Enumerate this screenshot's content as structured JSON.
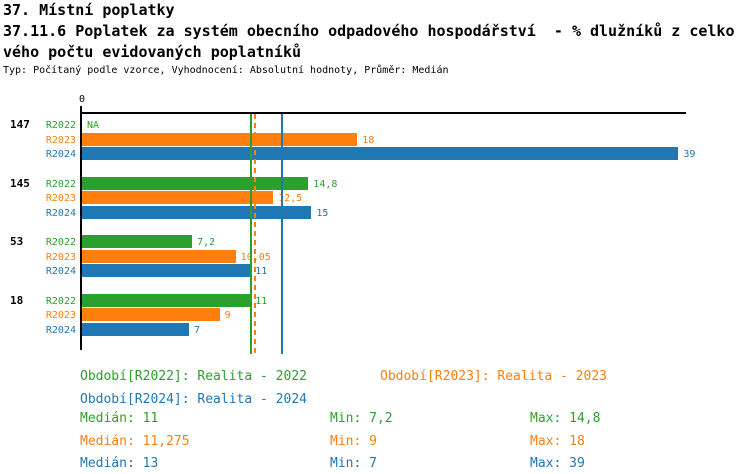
{
  "header": {
    "section_title": "37. Místní poplatky",
    "subtitle_line1": "37.11.6 Poplatek za systém obecního odpadového hospodářství  - % dlužníků z celko",
    "subtitle_line2": "vého počtu evidovaných poplatníků",
    "meta": "Typ: Počítaný podle vzorce, Vyhodnocení: Absolutní hodnoty, Průměr: Medián"
  },
  "colors": {
    "green": "#2ca02c",
    "orange": "#ff7f0e",
    "blue": "#1f77b4",
    "axis": "#000000",
    "background": "#ffffff"
  },
  "chart_data": {
    "type": "bar",
    "orientation": "horizontal",
    "title": "",
    "xlabel": "",
    "ylabel": "",
    "xlim": [
      0,
      39.5
    ],
    "grid": false,
    "legend_position": "bottom",
    "zero_tick_label": "0",
    "na_label": "NA",
    "categories": [
      "147",
      "145",
      "53",
      "18"
    ],
    "series": [
      {
        "name": "R2022",
        "color_key": "green",
        "values": [
          null,
          14.8,
          7.2,
          11
        ],
        "value_labels": [
          "NA",
          "14,8",
          "7,2",
          "11"
        ],
        "median": 11,
        "min": 7.2,
        "max": 14.8,
        "median_line_style": "solid"
      },
      {
        "name": "R2023",
        "color_key": "orange",
        "values": [
          18,
          12.5,
          10.05,
          9
        ],
        "value_labels": [
          "18",
          "12,5",
          "10,05",
          "9"
        ],
        "median": 11.275,
        "min": 9,
        "max": 18,
        "median_line_style": "dashed"
      },
      {
        "name": "R2024",
        "color_key": "blue",
        "values": [
          39,
          15,
          11,
          7
        ],
        "value_labels": [
          "39",
          "15",
          "11",
          "7"
        ],
        "median": 13,
        "min": 7,
        "max": 39,
        "median_line_style": "solid"
      }
    ]
  },
  "legend": {
    "items": [
      {
        "label": "Období[R2022]: Realita - 2022",
        "color_key": "green"
      },
      {
        "label": "Období[R2023]: Realita - 2023",
        "color_key": "orange"
      },
      {
        "label": "Období[R2024]: Realita - 2024",
        "color_key": "blue"
      }
    ]
  },
  "stats": {
    "rows": [
      {
        "color_key": "green",
        "median": "Medián: 11",
        "min": "Min: 7,2",
        "max": "Max: 14,8"
      },
      {
        "color_key": "orange",
        "median": "Medián: 11,275",
        "min": "Min: 9",
        "max": "Max: 18"
      },
      {
        "color_key": "blue",
        "median": "Medián: 13",
        "min": "Min: 7",
        "max": "Max: 39"
      }
    ]
  }
}
